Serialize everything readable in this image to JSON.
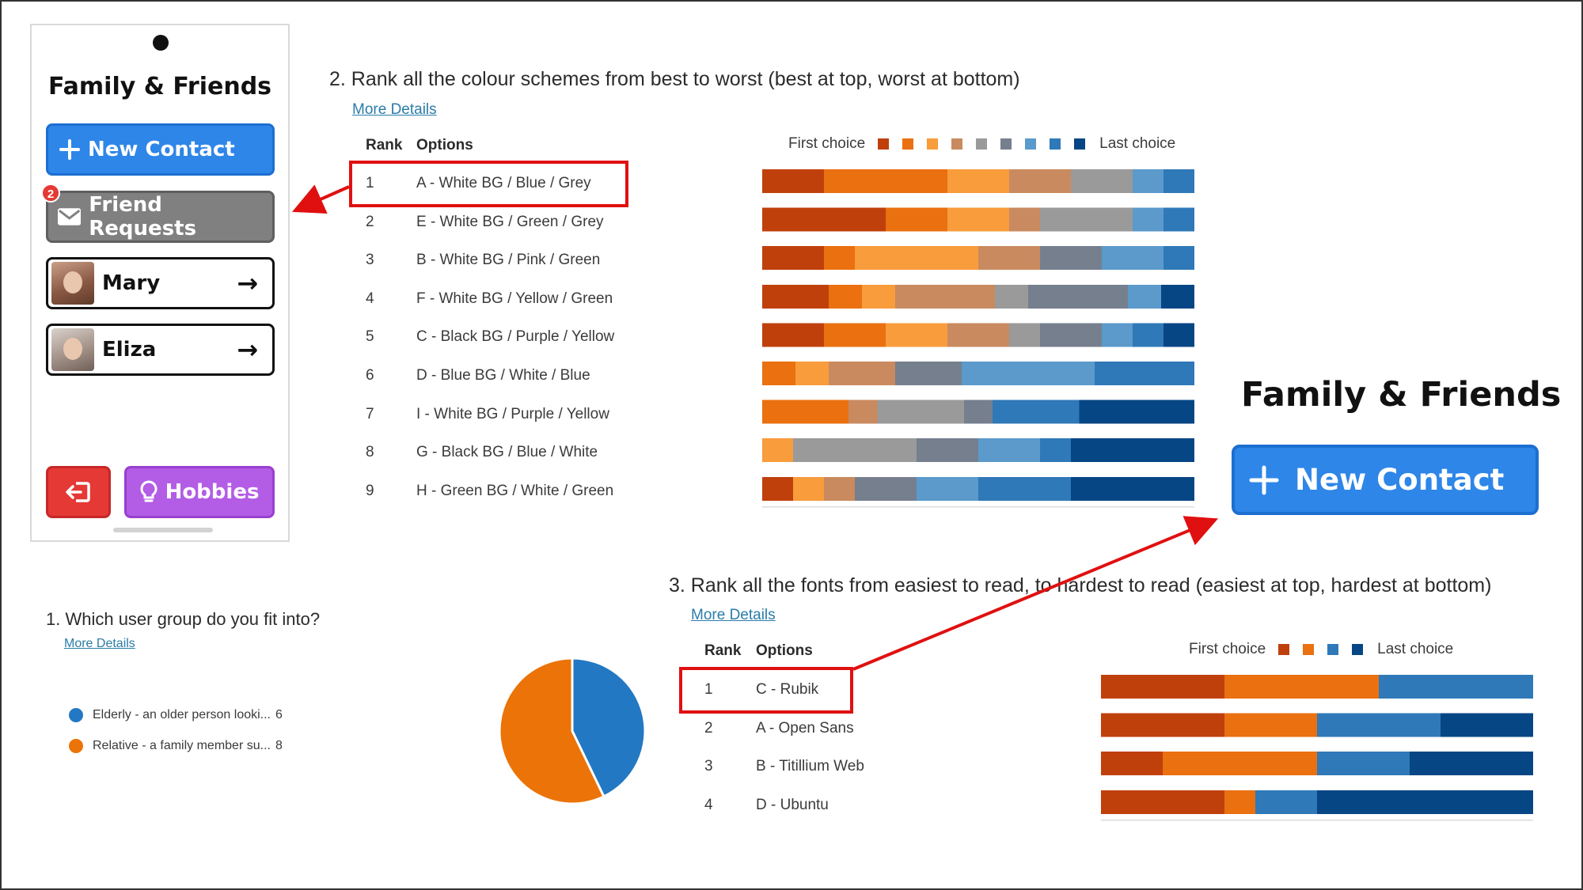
{
  "phone": {
    "title": "Family & Friends",
    "new_contact_label": "New Contact",
    "friend_requests_label": "Friend Requests",
    "friend_requests_badge": "2",
    "contacts": [
      {
        "name": "Mary"
      },
      {
        "name": "Eliza"
      }
    ],
    "hobbies_label": "Hobbies",
    "icons": {
      "new_contact": "plus-icon",
      "friend_requests": "envelope-icon",
      "contact_arrow": "arrow-right-icon",
      "logout": "logout-icon",
      "hobbies": "lightbulb-icon"
    }
  },
  "q1": {
    "title": "1.  Which user group do you fit into?",
    "more_details": "More Details",
    "legend": [
      {
        "label": "Elderly - an older person looki...",
        "count": "6",
        "color": "#2378c3"
      },
      {
        "label": "Relative - a family member su...",
        "count": "8",
        "color": "#eb7307"
      }
    ]
  },
  "q2": {
    "title": "2.  Rank all the colour schemes from best to worst (best at top, worst at bottom)",
    "more_details": "More Details",
    "col_rank": "Rank",
    "col_options": "Options",
    "legend_first": "First choice",
    "legend_last": "Last choice",
    "rows": [
      {
        "rank": "1",
        "option": "A - White BG / Blue / Grey"
      },
      {
        "rank": "2",
        "option": "E - White BG / Green / Grey"
      },
      {
        "rank": "3",
        "option": "B - White BG / Pink / Green"
      },
      {
        "rank": "4",
        "option": "F - White BG / Yellow / Green"
      },
      {
        "rank": "5",
        "option": "C - Black BG / Purple / Yellow"
      },
      {
        "rank": "6",
        "option": "D - Blue BG / White / Blue"
      },
      {
        "rank": "7",
        "option": "I - White BG / Purple / Yellow"
      },
      {
        "rank": "8",
        "option": "G - Black BG / Blue / White"
      },
      {
        "rank": "9",
        "option": "H - Green BG / White / Green"
      }
    ]
  },
  "q3": {
    "title": "3.  Rank all the fonts from easiest to read, to hardest to read (easiest at top, hardest at bottom)",
    "more_details": "More Details",
    "col_rank": "Rank",
    "col_options": "Options",
    "legend_first": "First choice",
    "legend_last": "Last choice",
    "rows": [
      {
        "rank": "1",
        "option": "C - Rubik"
      },
      {
        "rank": "2",
        "option": "A - Open Sans"
      },
      {
        "rank": "3",
        "option": "B - Titillium Web"
      },
      {
        "rank": "4",
        "option": "D - Ubuntu"
      }
    ]
  },
  "zoom": {
    "title": "Family & Friends",
    "new_contact_label": "New Contact"
  },
  "colors": {
    "new_contact": "#2e86e8",
    "friend_requests": "#808080",
    "logout": "#e53935",
    "hobbies": "#b35ce6",
    "highlight": "#e01010",
    "link": "#2a7ca8"
  },
  "chart_data": [
    {
      "type": "pie",
      "categories": [
        "Elderly - an older person looki...",
        "Relative - a family member su..."
      ],
      "values": [
        6,
        8
      ],
      "colors": [
        "#2378c3",
        "#eb7307"
      ]
    },
    {
      "type": "bar",
      "stacked": true,
      "orientation": "horizontal",
      "categories": [
        "A - White BG / Blue / Grey",
        "E - White BG / Green / Grey",
        "B - White BG / Pink / Green",
        "F - White BG / Yellow / Green",
        "C - Black BG / Purple / Yellow",
        "D - Blue BG / White / Blue",
        "I - White BG / Purple / Yellow",
        "G - Black BG / Blue / White",
        "H - Green BG / White / Green"
      ],
      "legend": [
        "First choice",
        "Last choice"
      ],
      "palette": [
        "#c0400c",
        "#ea7010",
        "#f89c3c",
        "#c98a5f",
        "#9a9a9a",
        "#767f8e",
        "#5b9acb",
        "#2f79b8",
        "#074685"
      ],
      "series": [
        {
          "values": [
            2,
            4,
            2,
            2,
            2,
            0,
            0,
            0,
            1
          ]
        },
        {
          "values": [
            4,
            2,
            1,
            1,
            2,
            1,
            3,
            0,
            0
          ]
        },
        {
          "values": [
            2,
            2,
            4,
            1,
            2,
            1,
            0,
            1,
            1
          ]
        },
        {
          "values": [
            2,
            1,
            2,
            3,
            2,
            2,
            1,
            0,
            1
          ]
        },
        {
          "values": [
            2,
            3,
            0,
            1,
            1,
            0,
            3,
            4,
            0
          ]
        },
        {
          "values": [
            0,
            0,
            2,
            3,
            2,
            2,
            1,
            2,
            2
          ]
        },
        {
          "values": [
            1,
            1,
            2,
            1,
            1,
            4,
            0,
            2,
            2
          ]
        },
        {
          "values": [
            1,
            1,
            1,
            0,
            1,
            3,
            3,
            1,
            3
          ]
        },
        {
          "values": [
            0,
            0,
            0,
            1,
            1,
            0,
            4,
            4,
            4
          ]
        }
      ]
    },
    {
      "type": "bar",
      "stacked": true,
      "orientation": "horizontal",
      "categories": [
        "C - Rubik",
        "A - Open Sans",
        "B - Titillium Web",
        "D - Ubuntu"
      ],
      "legend": [
        "First choice",
        "Last choice"
      ],
      "palette": [
        "#c0400c",
        "#ea7010",
        "#2f79b8",
        "#074685"
      ],
      "series": [
        {
          "values": [
            4,
            4,
            2,
            4
          ]
        },
        {
          "values": [
            5,
            3,
            5,
            1
          ]
        },
        {
          "values": [
            5,
            4,
            3,
            2
          ]
        },
        {
          "values": [
            0,
            3,
            4,
            7
          ]
        }
      ]
    }
  ]
}
